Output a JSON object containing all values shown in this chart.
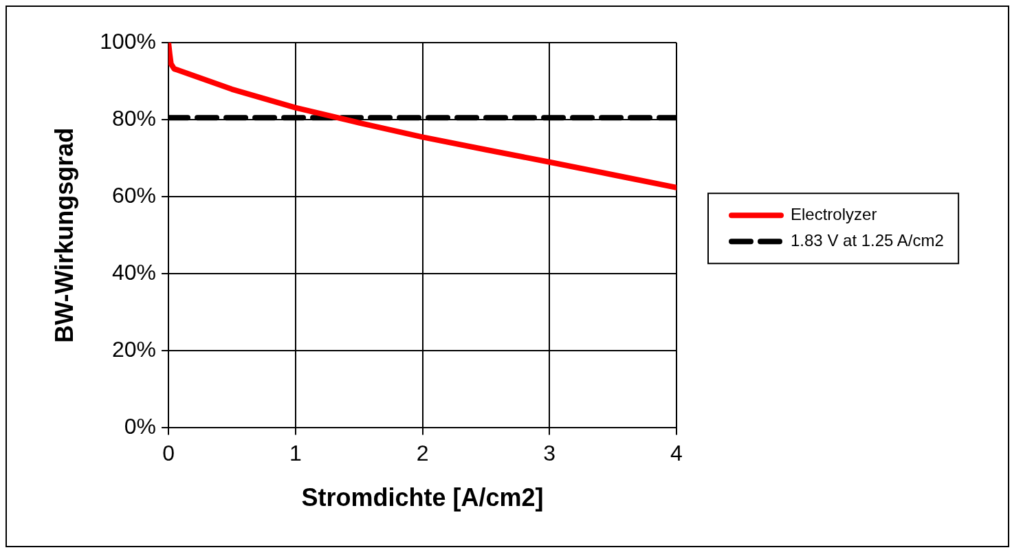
{
  "chart_data": {
    "type": "line",
    "xlabel": "Stromdichte [A/cm2]",
    "ylabel": "BW-Wirkungsgrad",
    "xlim": [
      0,
      4
    ],
    "xticks": [
      0,
      1,
      2,
      3,
      4
    ],
    "ylim": [
      0,
      100
    ],
    "yticks": [
      {
        "value": 0,
        "label": "0%"
      },
      {
        "value": 20,
        "label": "20%"
      },
      {
        "value": 40,
        "label": "40%"
      },
      {
        "value": 60,
        "label": "60%"
      },
      {
        "value": 80,
        "label": "80%"
      },
      {
        "value": 100,
        "label": "100%"
      }
    ],
    "grid": true,
    "legend": "right",
    "marker": "none",
    "series": [
      {
        "name": "Electrolyzer",
        "color": "#ff0000",
        "line_style": "solid",
        "x": [
          0,
          0.01,
          0.02,
          0.045,
          0.5,
          1,
          1.5,
          2,
          2.5,
          3,
          3.5,
          4
        ],
        "values": [
          100,
          97,
          94.5,
          93.2,
          87.9,
          83.1,
          79.2,
          75.5,
          72.2,
          69,
          65.7,
          62.4
        ]
      },
      {
        "name": "1.83 V at 1.25 A/cm2",
        "color": "#000000",
        "line_style": "dashed",
        "x": [
          0,
          4
        ],
        "values": [
          80.5,
          80.5
        ]
      }
    ]
  }
}
